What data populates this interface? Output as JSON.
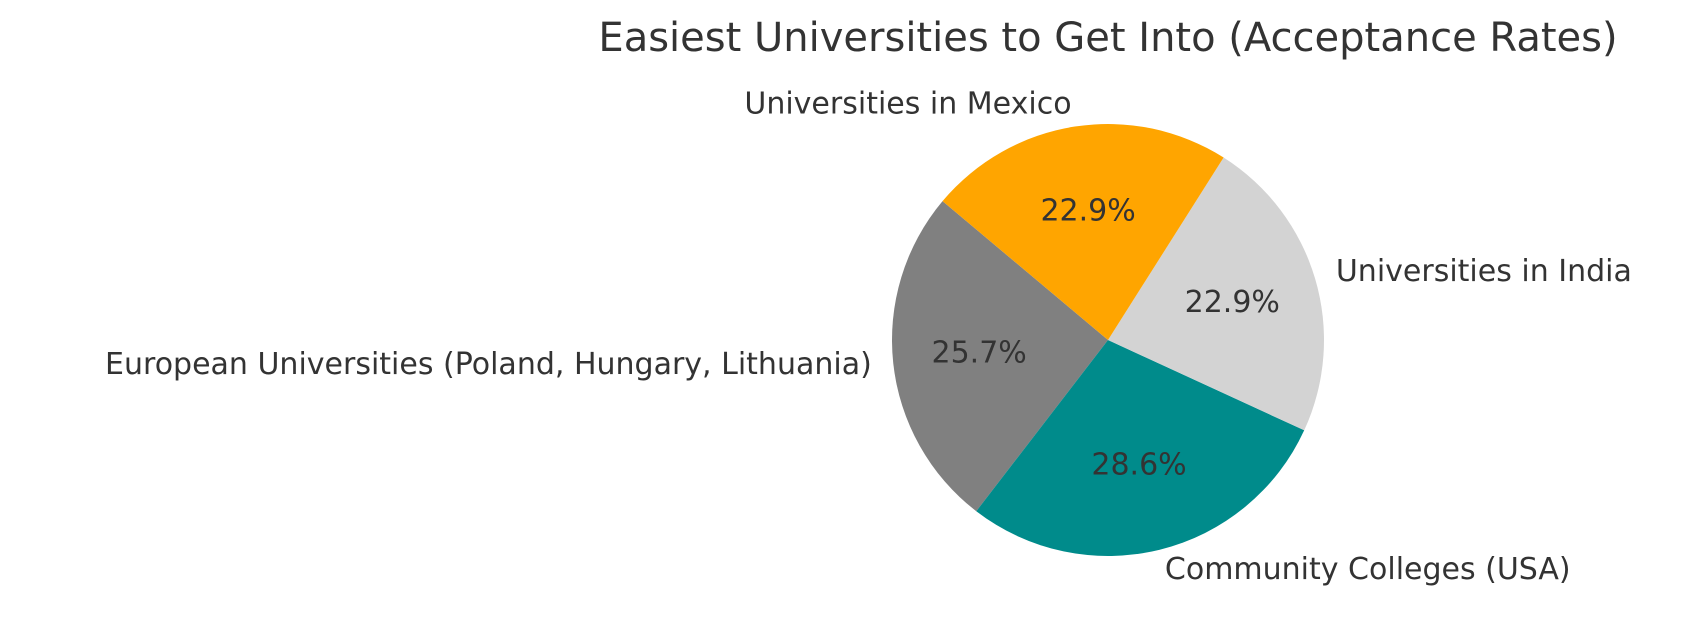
{
  "chart_data": {
    "type": "pie",
    "title": "Easiest Universities to Get Into (Acceptance Rates)",
    "categories": [
      "European Universities (Poland, Hungary, Lithuania)",
      "Community Colleges (USA)",
      "Universities in India",
      "Universities in Mexico"
    ],
    "values": [
      25.7,
      28.6,
      22.9,
      22.9
    ],
    "value_labels": [
      "25.7%",
      "28.6%",
      "22.9%",
      "22.9%"
    ],
    "colors": [
      "#808080",
      "#008b8b",
      "#d3d3d3",
      "#ffa500"
    ],
    "start_angle": 140
  }
}
